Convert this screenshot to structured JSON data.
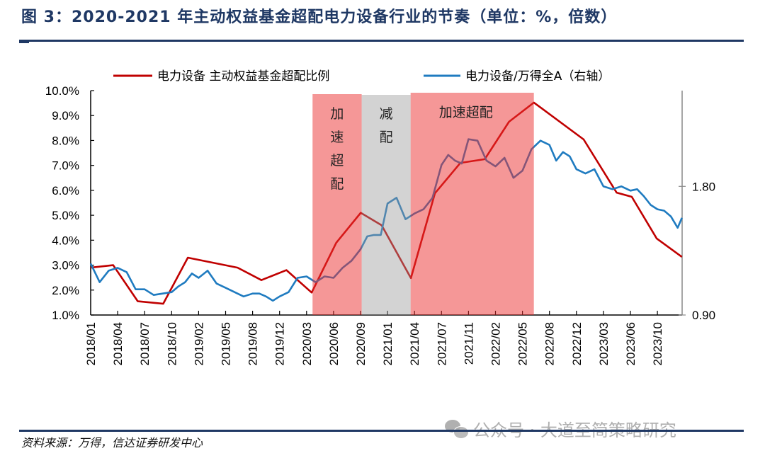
{
  "header": {
    "title": "图 3：2020-2021 年主动权益基金超配电力设备行业的节奏（单位：%，倍数）"
  },
  "footer": {
    "source": "资料来源：万得，信达证券研发中心"
  },
  "watermark": {
    "text": "公众号 · 大道至简策略研究",
    "icon": "wechat-icon"
  },
  "chart_data": {
    "type": "line",
    "title": "",
    "legend_position": "top",
    "grid": false,
    "x_axis": {
      "type": "date",
      "range": [
        "2018/01/01",
        "2024/01/22"
      ],
      "tick_labels": [
        "2018/01",
        "2018/04",
        "2018/07",
        "2018/10",
        "2019/02",
        "2019/05",
        "2019/08",
        "2019/12",
        "2020/03",
        "2020/06",
        "2020/09",
        "2021/01",
        "2021/04",
        "2021/07",
        "2021/11",
        "2022/02",
        "2022/05",
        "2022/08",
        "2022/12",
        "2023/03",
        "2023/06",
        "2023/10"
      ]
    },
    "y_left": {
      "range": [
        1.0,
        10.0
      ],
      "unit": "%",
      "tick_labels": [
        "1.0%",
        "2.0%",
        "3.0%",
        "4.0%",
        "5.0%",
        "6.0%",
        "7.0%",
        "8.0%",
        "9.0%",
        "10.0%"
      ],
      "tick_values": [
        1,
        2,
        3,
        4,
        5,
        6,
        7,
        8,
        9,
        10
      ]
    },
    "y_right": {
      "range": [
        0.9,
        2.47
      ],
      "tick_labels": [
        "0.90",
        "1.80"
      ],
      "tick_values": [
        0.9,
        1.8
      ]
    },
    "series": [
      {
        "name": "电力设备 主动权益基金超配比例",
        "axis": "left",
        "color": "#c00000",
        "points": [
          [
            "2018/01/01",
            2.9
          ],
          [
            "2018/03/16",
            3.0
          ],
          [
            "2018/06/08",
            1.55
          ],
          [
            "2018/09/03",
            1.45
          ],
          [
            "2018/12/13",
            3.3
          ],
          [
            "2019/06/11",
            2.9
          ],
          [
            "2019/09/10",
            2.4
          ],
          [
            "2019/12/24",
            2.8
          ],
          [
            "2020/03/18",
            1.9
          ],
          [
            "2020/06/10",
            3.9
          ],
          [
            "2020/09/02",
            5.1
          ],
          [
            "2020/12/05",
            4.6
          ],
          [
            "2021/03/19",
            2.48
          ],
          [
            "2021/06/09",
            5.88
          ],
          [
            "2021/09/25",
            7.1
          ],
          [
            "2021/12/25",
            7.25
          ],
          [
            "2022/03/16",
            8.75
          ],
          [
            "2022/06/09",
            9.52
          ],
          [
            "2022/12/25",
            8.04
          ],
          [
            "2023/04/15",
            5.91
          ],
          [
            "2023/06/07",
            5.74
          ],
          [
            "2023/09/28",
            4.07
          ],
          [
            "2024/01/20",
            3.33
          ]
        ]
      },
      {
        "name": "电力设备/万得全A（右轴）",
        "axis": "right",
        "color": "#1f7bc0",
        "points": [
          [
            "2018/01",
            1.26
          ],
          [
            "2018/02",
            1.13
          ],
          [
            "2018/03",
            1.21
          ],
          [
            "2018/04",
            1.23
          ],
          [
            "2018/05",
            1.2
          ],
          [
            "2018/06",
            1.08
          ],
          [
            "2018/07",
            1.08
          ],
          [
            "2018/08",
            1.04
          ],
          [
            "2018/09",
            1.05
          ],
          [
            "2018/10",
            1.06
          ],
          [
            "2018/11",
            1.1
          ],
          [
            "2018/12",
            1.13
          ],
          [
            "2019/01",
            1.19
          ],
          [
            "2019/02",
            1.16
          ],
          [
            "2019/03",
            1.21
          ],
          [
            "2019/04",
            1.12
          ],
          [
            "2019/05",
            1.09
          ],
          [
            "2019/06",
            1.06
          ],
          [
            "2019/07",
            1.03
          ],
          [
            "2019/08",
            1.05
          ],
          [
            "2019/09",
            1.05
          ],
          [
            "2019/10",
            1.03
          ],
          [
            "2019/11",
            1.0
          ],
          [
            "2019/12",
            1.03
          ],
          [
            "2020/01",
            1.06
          ],
          [
            "2020/02",
            1.16
          ],
          [
            "2020/03",
            1.17
          ],
          [
            "2020/04",
            1.13
          ],
          [
            "2020/05",
            1.17
          ],
          [
            "2020/06",
            1.16
          ],
          [
            "2020/07",
            1.23
          ],
          [
            "2020/08",
            1.28
          ],
          [
            "2020/09",
            1.36
          ],
          [
            "2020/10",
            1.45
          ],
          [
            "2020/11",
            1.46
          ],
          [
            "2020/12",
            1.46
          ],
          [
            "2021/01",
            1.68
          ],
          [
            "2021/02",
            1.72
          ],
          [
            "2021/03",
            1.57
          ],
          [
            "2021/04",
            1.61
          ],
          [
            "2021/05",
            1.64
          ],
          [
            "2021/06",
            1.72
          ],
          [
            "2021/07",
            1.95
          ],
          [
            "2021/08",
            2.02
          ],
          [
            "2021/09",
            1.98
          ],
          [
            "2021/10",
            1.96
          ],
          [
            "2021/11",
            2.13
          ],
          [
            "2021/12",
            2.12
          ],
          [
            "2022/01",
            1.98
          ],
          [
            "2022/02",
            1.94
          ],
          [
            "2022/03",
            2.0
          ],
          [
            "2022/04",
            1.86
          ],
          [
            "2022/05",
            1.91
          ],
          [
            "2022/06",
            2.06
          ],
          [
            "2022/07",
            2.12
          ],
          [
            "2022/08",
            2.09
          ],
          [
            "2022/09",
            1.98
          ],
          [
            "2022/10",
            2.04
          ],
          [
            "2022/11",
            2.01
          ],
          [
            "2022/12",
            1.92
          ],
          [
            "2023/01",
            1.89
          ],
          [
            "2023/02",
            1.92
          ],
          [
            "2023/03",
            1.8
          ],
          [
            "2023/04",
            1.78
          ],
          [
            "2023/05",
            1.8
          ],
          [
            "2023/06",
            1.77
          ],
          [
            "2023/07",
            1.78
          ],
          [
            "2023/08",
            1.73
          ],
          [
            "2023/09",
            1.67
          ],
          [
            "2023/10",
            1.64
          ],
          [
            "2023/11",
            1.63
          ],
          [
            "2023/12",
            1.59
          ],
          [
            "2024/01",
            1.51
          ],
          [
            "2024/01/20",
            1.58
          ]
        ]
      }
    ],
    "annotations": [
      {
        "label": "加速超配",
        "start": "2020/03/21",
        "end": "2020/09/06",
        "color": "#f59b9b",
        "orientation": "vertical"
      },
      {
        "label": "减配",
        "start": "2020/09/06",
        "end": "2021/03/18",
        "color": "#d4d4d4",
        "orientation": "vertical"
      },
      {
        "label": "加速超配",
        "start": "2021/03/18",
        "end": "2022/06/09",
        "color": "#f59b9b",
        "orientation": "horizontal"
      }
    ]
  }
}
